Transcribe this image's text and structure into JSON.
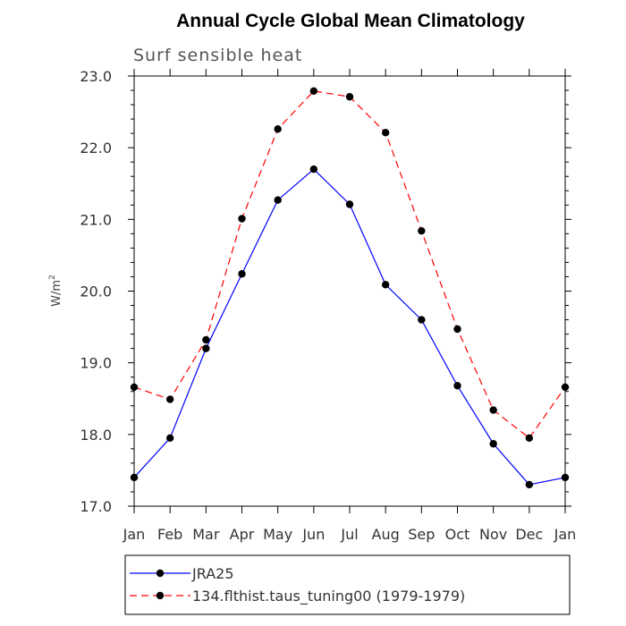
{
  "chart_data": {
    "type": "line",
    "title": "Annual Cycle Global Mean Climatology",
    "subtitle": "Surf sensible heat",
    "ylabel": "W/m",
    "ylabel_superscript": "2",
    "xlabel": "",
    "categories": [
      "Jan",
      "Feb",
      "Mar",
      "Apr",
      "May",
      "Jun",
      "Jul",
      "Aug",
      "Sep",
      "Oct",
      "Nov",
      "Dec",
      "Jan"
    ],
    "ylim": [
      17.0,
      23.0
    ],
    "yticks": [
      "17.0",
      "18.0",
      "19.0",
      "20.0",
      "21.0",
      "22.0",
      "23.0"
    ],
    "series": [
      {
        "name": "JRA25",
        "color": "#0000ff",
        "dash": "solid",
        "values": [
          17.4,
          17.95,
          19.2,
          20.24,
          21.27,
          21.7,
          21.21,
          20.09,
          19.6,
          18.68,
          17.87,
          17.3,
          17.4
        ]
      },
      {
        "name": "134.flthist.taus_tuning00 (1979-1979)",
        "color": "#ff0000",
        "dash": "dashed",
        "values": [
          18.66,
          18.49,
          19.32,
          21.01,
          22.26,
          22.79,
          22.71,
          22.21,
          20.84,
          19.47,
          18.34,
          17.95,
          18.66
        ]
      }
    ],
    "legend_position": "bottom"
  }
}
